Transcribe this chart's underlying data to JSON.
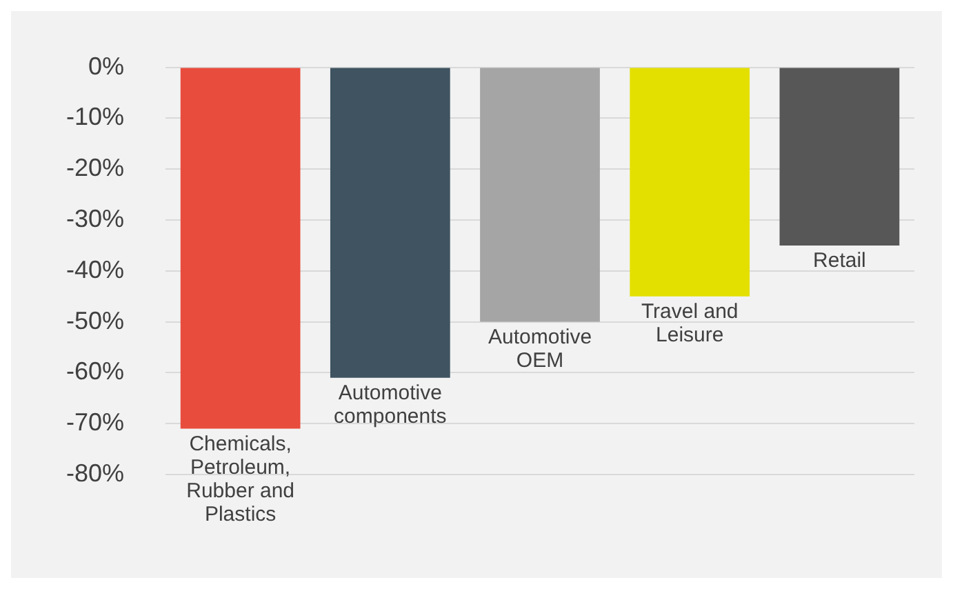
{
  "chart_data": {
    "type": "bar",
    "categories": [
      "Chemicals, Petroleum, Rubber and Plastics",
      "Automotive components",
      "Automotive OEM",
      "Travel and Leisure",
      "Retail"
    ],
    "values": [
      -71,
      -61,
      -50,
      -45,
      -35
    ],
    "colors": [
      "#e84c3d",
      "#3f5361",
      "#a5a5a5",
      "#e3e000",
      "#575757"
    ],
    "ylim": [
      -80,
      0
    ],
    "yticks": [
      {
        "value": 0,
        "label": "0%"
      },
      {
        "value": -10,
        "label": "-10%"
      },
      {
        "value": -20,
        "label": "-20%"
      },
      {
        "value": -30,
        "label": "-30%"
      },
      {
        "value": -40,
        "label": "-40%"
      },
      {
        "value": -50,
        "label": "-50%"
      },
      {
        "value": -60,
        "label": "-60%"
      },
      {
        "value": -70,
        "label": "-70%"
      },
      {
        "value": -80,
        "label": "-80%"
      }
    ],
    "grid": "y",
    "tick_labels": "y",
    "legend": false
  }
}
